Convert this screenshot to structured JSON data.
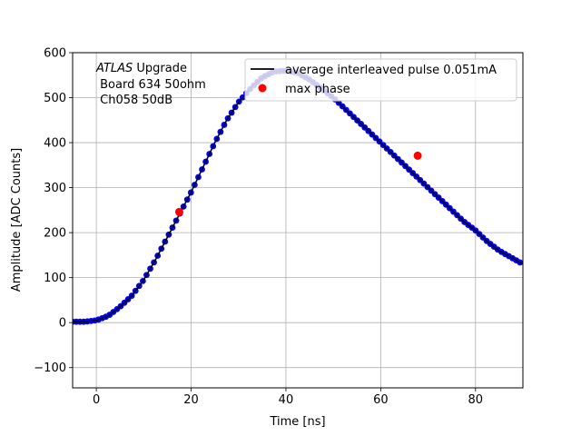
{
  "chart_data": {
    "type": "scatter",
    "title": "",
    "xlabel": "Time [ns]",
    "ylabel": "Amplitude [ADC Counts]",
    "xlim": [
      -5,
      90
    ],
    "ylim": [
      -145,
      600
    ],
    "xticks": [
      0,
      20,
      40,
      60,
      80
    ],
    "yticks": [
      -100,
      0,
      100,
      200,
      300,
      400,
      500,
      600
    ],
    "ytick_labels": [
      "−100",
      "0",
      "100",
      "200",
      "300",
      "400",
      "500",
      "600"
    ],
    "grid": true,
    "legend_position": "top-right",
    "annotation": {
      "italic": "ATLAS",
      "line1_rest": " Upgrade",
      "line2": " Board 634 50ohm",
      "line3": " Ch058 50dB"
    },
    "series": [
      {
        "name": "average interleaved pulse 0.051mA",
        "kind": "line",
        "color": "#000000",
        "x": [
          -5,
          -2.5,
          0,
          2.5,
          5,
          7.5,
          10,
          12.5,
          15,
          17.5,
          20,
          22.5,
          25,
          27.5,
          30,
          32.5,
          35,
          37.5,
          40,
          42.5,
          45,
          47.5,
          50,
          52.5,
          55,
          57.5,
          60,
          62.5,
          65,
          67.5,
          70,
          72.5,
          75,
          77.5,
          80,
          82.5,
          85,
          87.5,
          90
        ],
        "y": [
          2,
          2,
          5,
          15,
          35,
          60,
          95,
          140,
          190,
          240,
          290,
          345,
          400,
          450,
          490,
          520,
          545,
          558,
          560,
          555,
          540,
          520,
          500,
          475,
          450,
          425,
          400,
          375,
          350,
          325,
          300,
          275,
          250,
          225,
          205,
          180,
          160,
          145,
          130
        ]
      },
      {
        "name": "",
        "kind": "points",
        "color": "#0000ff",
        "x": [
          -5,
          -2.5,
          0,
          2.5,
          5,
          7.5,
          10,
          12.5,
          15,
          17.5,
          20,
          22.5,
          25,
          27.5,
          30,
          32.5,
          35,
          37.5,
          40,
          42.5,
          45,
          47.5,
          50,
          52.5,
          55,
          57.5,
          60,
          62.5,
          65,
          67.5,
          70,
          72.5,
          75,
          77.5,
          80,
          82.5,
          85,
          87.5,
          90
        ],
        "y": [
          2,
          2,
          5,
          15,
          35,
          60,
          95,
          140,
          190,
          240,
          290,
          345,
          400,
          450,
          490,
          520,
          545,
          558,
          560,
          555,
          540,
          520,
          500,
          475,
          450,
          425,
          400,
          375,
          350,
          325,
          300,
          275,
          250,
          225,
          205,
          180,
          160,
          145,
          130
        ]
      },
      {
        "name": "max phase",
        "kind": "marker",
        "color": "#ff0000",
        "x": [
          17.5,
          67.8
        ],
        "y": [
          246,
          371
        ]
      }
    ]
  }
}
